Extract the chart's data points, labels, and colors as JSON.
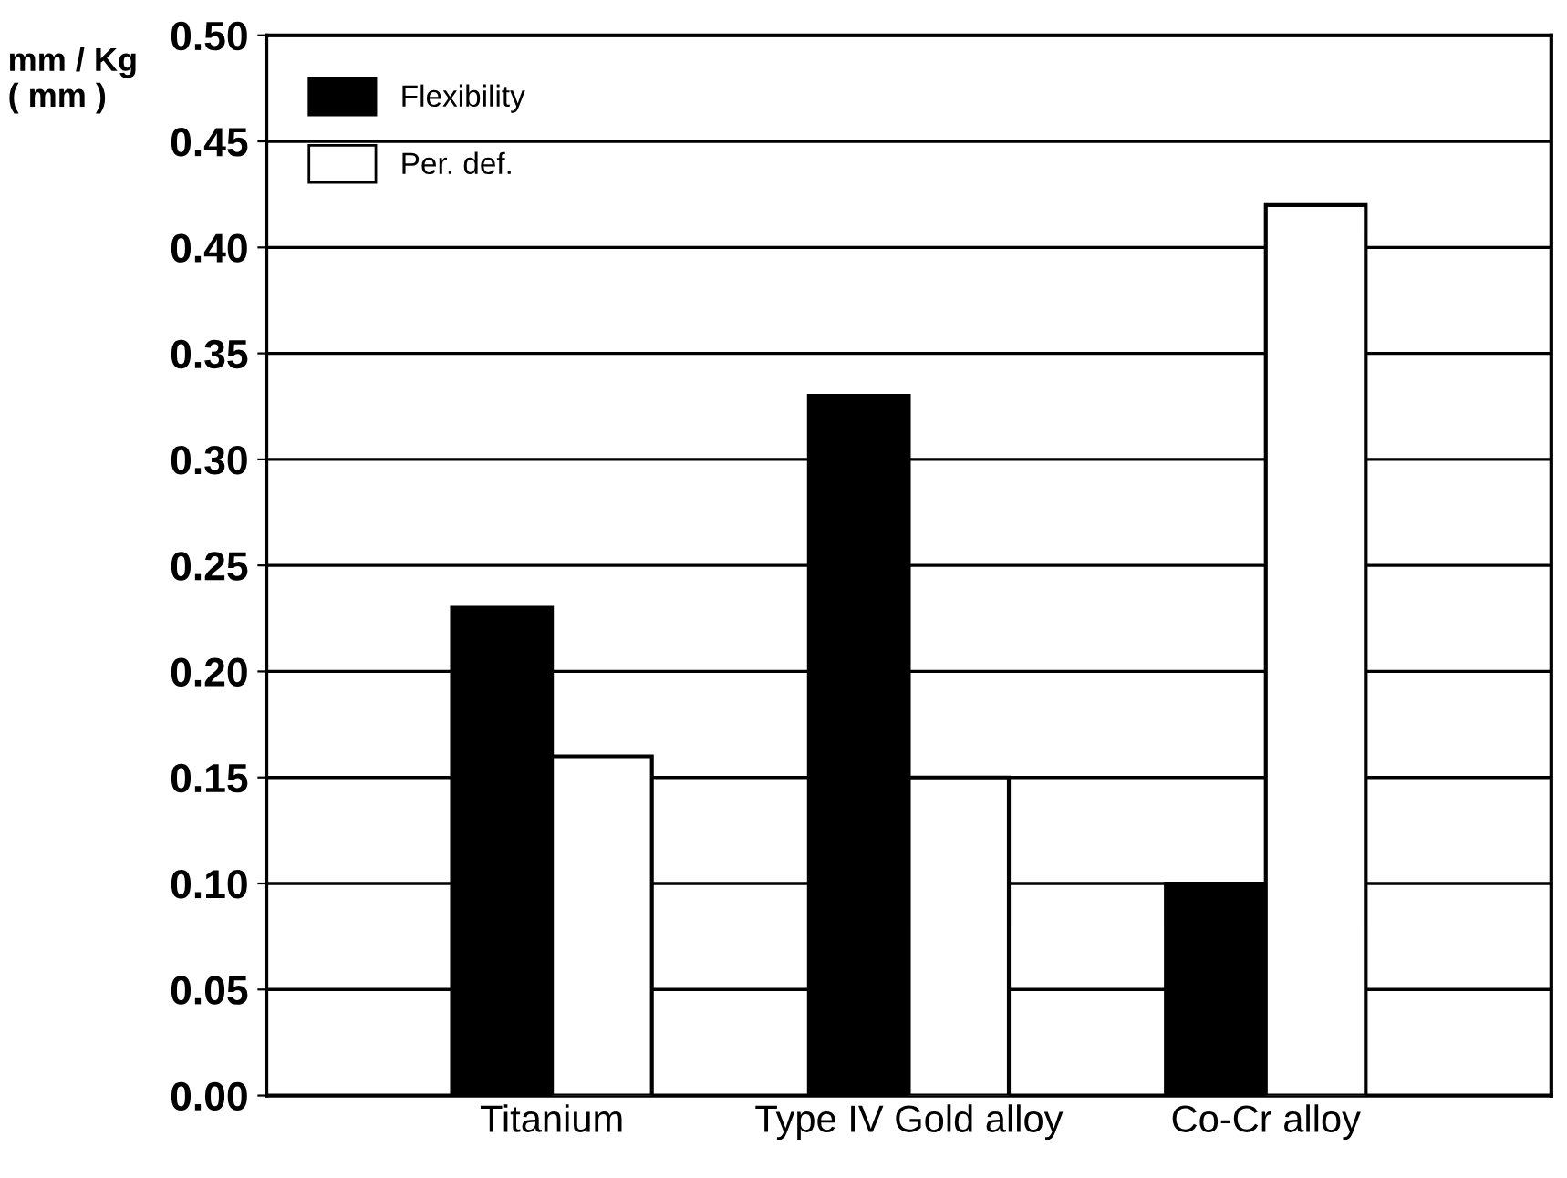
{
  "chart_data": {
    "type": "bar",
    "ylabel": "mm / Kg\n( mm )",
    "categories": [
      "Titanium",
      "Type IV Gold alloy",
      "Co-Cr alloy"
    ],
    "series": [
      {
        "name": "Flexibility",
        "color": "#000000",
        "values": [
          0.23,
          0.33,
          0.1
        ]
      },
      {
        "name": "Per. def.",
        "color": "#ffffff",
        "values": [
          0.16,
          0.15,
          0.42
        ]
      }
    ],
    "ylim": [
      0,
      0.5
    ],
    "yticks": [
      {
        "value": 0,
        "label": "0.00"
      },
      {
        "value": 0.05,
        "label": "0.05"
      },
      {
        "value": 0.1,
        "label": "0.10"
      },
      {
        "value": 0.15,
        "label": "0.15"
      },
      {
        "value": 0.2,
        "label": "0.20"
      },
      {
        "value": 0.25,
        "label": "0.25"
      },
      {
        "value": 0.3,
        "label": "0.30"
      },
      {
        "value": 0.35,
        "label": "0.35"
      },
      {
        "value": 0.4,
        "label": "0.40"
      },
      {
        "value": 0.45,
        "label": "0.45"
      },
      {
        "value": 0.5,
        "label": "0.50"
      }
    ],
    "grid": "y",
    "legend": "top left"
  }
}
